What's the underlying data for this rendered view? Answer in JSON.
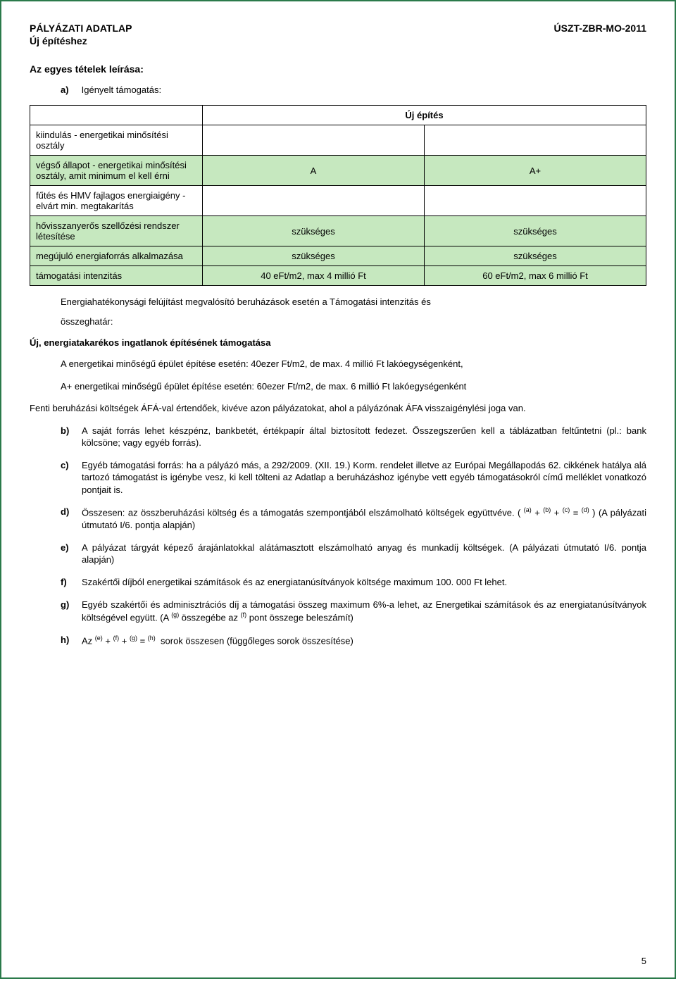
{
  "header": {
    "left": "PÁLYÁZATI ADATLAP",
    "right": "ÚSZT-ZBR-MO-2011",
    "sub": "Új építéshez"
  },
  "section_title": "Az egyes tételek leírása:",
  "item_a": {
    "letter": "a)",
    "text": "Igényelt támogatás:"
  },
  "table": {
    "header_merged": "Új építés",
    "rows": [
      {
        "label": "kiindulás - energetikai minősítési osztály",
        "c1": "",
        "c2": "",
        "green": false
      },
      {
        "label": "végső állapot - energetikai minősítési osztály, amit minimum el kell érni",
        "c1": "A",
        "c2": "A+",
        "green": true
      },
      {
        "label": "fűtés és HMV fajlagos energiaigény - elvárt min. megtakarítás",
        "c1": "",
        "c2": "",
        "green": false
      },
      {
        "label": "hővisszanyerős szellőzési rendszer létesítése",
        "c1": "szükséges",
        "c2": "szükséges",
        "green": true
      },
      {
        "label": "megújuló energiaforrás alkalmazása",
        "c1": "szükséges",
        "c2": "szükséges",
        "green": true
      },
      {
        "label": "támogatási intenzitás",
        "c1": "40 eFt/m2, max 4 millió Ft",
        "c2": "60 eFt/m2, max 6 millió Ft",
        "green": true
      }
    ]
  },
  "below_table": {
    "line1": "Energiahatékonysági felújítást megvalósító beruházások esetén a Támogatási intenzitás és",
    "line2": "összeghatár:"
  },
  "subhead": "Új, energiatakarékos ingatlanok építésének támogatása",
  "para_a1": "A energetikai minőségű épület építése esetén: 40ezer Ft/m2, de max. 4 millió Ft lakóegységenként,",
  "para_a2": "A+ energetikai minőségű épület építése esetén: 60ezer Ft/m2, de max. 6 millió Ft lakóegységenként",
  "para_fenti": "Fenti beruházási költségek ÁFÁ-val értendőek, kivéve azon pályázatokat, ahol a pályázónak ÁFA visszaigénylési joga van.",
  "list": [
    {
      "letter": "b)",
      "html": "A saját forrás lehet készpénz, bankbetét, értékpapír által biztosított fedezet. Összegszerűen kell a táblázatban feltűntetni (pl.: bank kölcsöne; vagy egyéb forrás)."
    },
    {
      "letter": "c)",
      "html": "Egyéb támogatási forrás: ha a pályázó más, a 292/2009. (XII. 19.) Korm. rendelet illetve az Európai Megállapodás 62. cikkének hatálya alá tartozó támogatást is igénybe vesz, ki kell tölteni az Adatlap a beruházáshoz igénybe vett egyéb támogatásokról című melléklet vonatkozó pontjait is."
    },
    {
      "letter": "d)",
      "html": "Összesen: az összberuházási költség és a támogatás szempontjából elszámolható költségek együttvéve. ( <sup>(a)</sup> + <sup>(b)</sup> + <sup>(c)</sup> = <sup>(d)</sup> ) (A pályázati útmutató I/6. pontja alapján)"
    },
    {
      "letter": "e)",
      "html": "A pályázat tárgyát képező árajánlatokkal alátámasztott elszámolható anyag és munkadíj költségek. (A pályázati útmutató I/6. pontja alapján)"
    },
    {
      "letter": "f)",
      "html": "Szakértői díjból energetikai számítások és az energiatanúsítványok költsége maximum 100. 000 Ft lehet."
    },
    {
      "letter": "g)",
      "html": "Egyéb szakértői és adminisztrációs díj a támogatási összeg maximum 6%-a lehet, az Energetikai számítások és az energiatanúsítványok költségével együtt. (A <sup>(g)</sup> összegébe az <sup>(f)</sup> pont összege beleszámít)"
    },
    {
      "letter": "h)",
      "html": "Az <sup>(e)</sup> + <sup>(f)</sup> + <sup>(g)</sup> = <sup>(h)</sup> &nbsp;sorok összesen (függőleges sorok összesítése)"
    }
  ],
  "page_number": "5"
}
